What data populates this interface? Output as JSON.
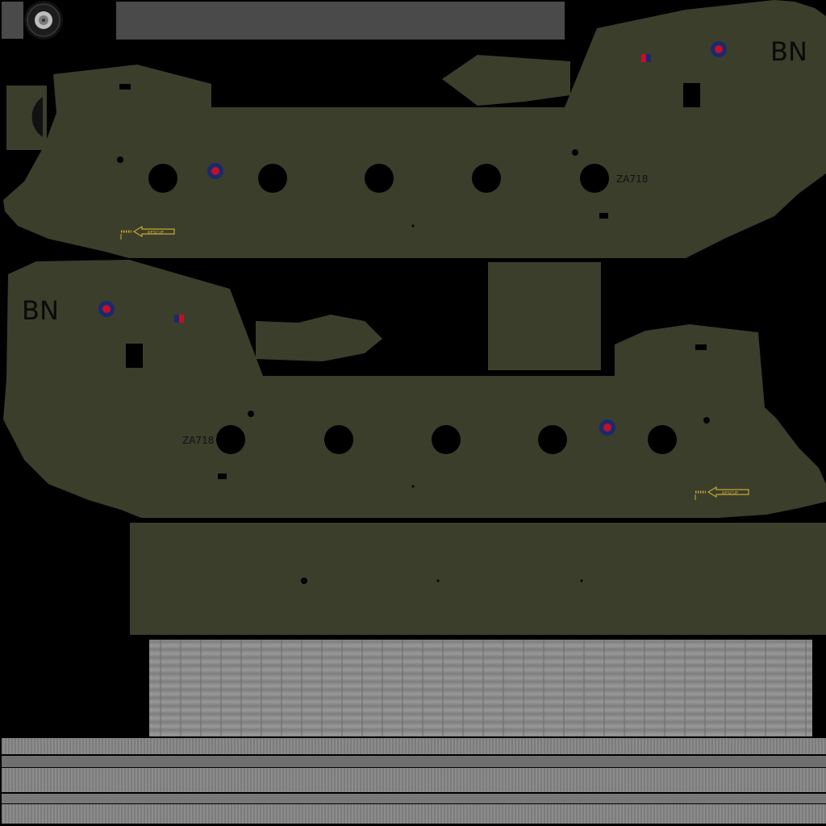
{
  "texture": {
    "background_color": "#000000",
    "olive_drab_color": "#3b3e2b",
    "roundel_colors": {
      "outer": "#1a2a6c",
      "inner": "#c0102b"
    },
    "flash_colors": {
      "left": "#c0102b",
      "right": "#1a2a6c"
    },
    "rescue_arrow_color": "#c8a832",
    "metal_panel_color": "#8a8a8a"
  },
  "markings": {
    "squadron_code_upper": "BN",
    "squadron_code_lower": "BN",
    "serial_upper": "ZA718",
    "serial_lower": "ZA718",
    "rescue_label_upper": "RESCUE",
    "rescue_label_lower": "RESCUE"
  },
  "icons": {
    "wheel": "wheel-icon",
    "roundel": "raf-roundel-icon",
    "fin_flash": "fin-flash-icon",
    "rescue_arrow": "rescue-arrow-icon"
  }
}
